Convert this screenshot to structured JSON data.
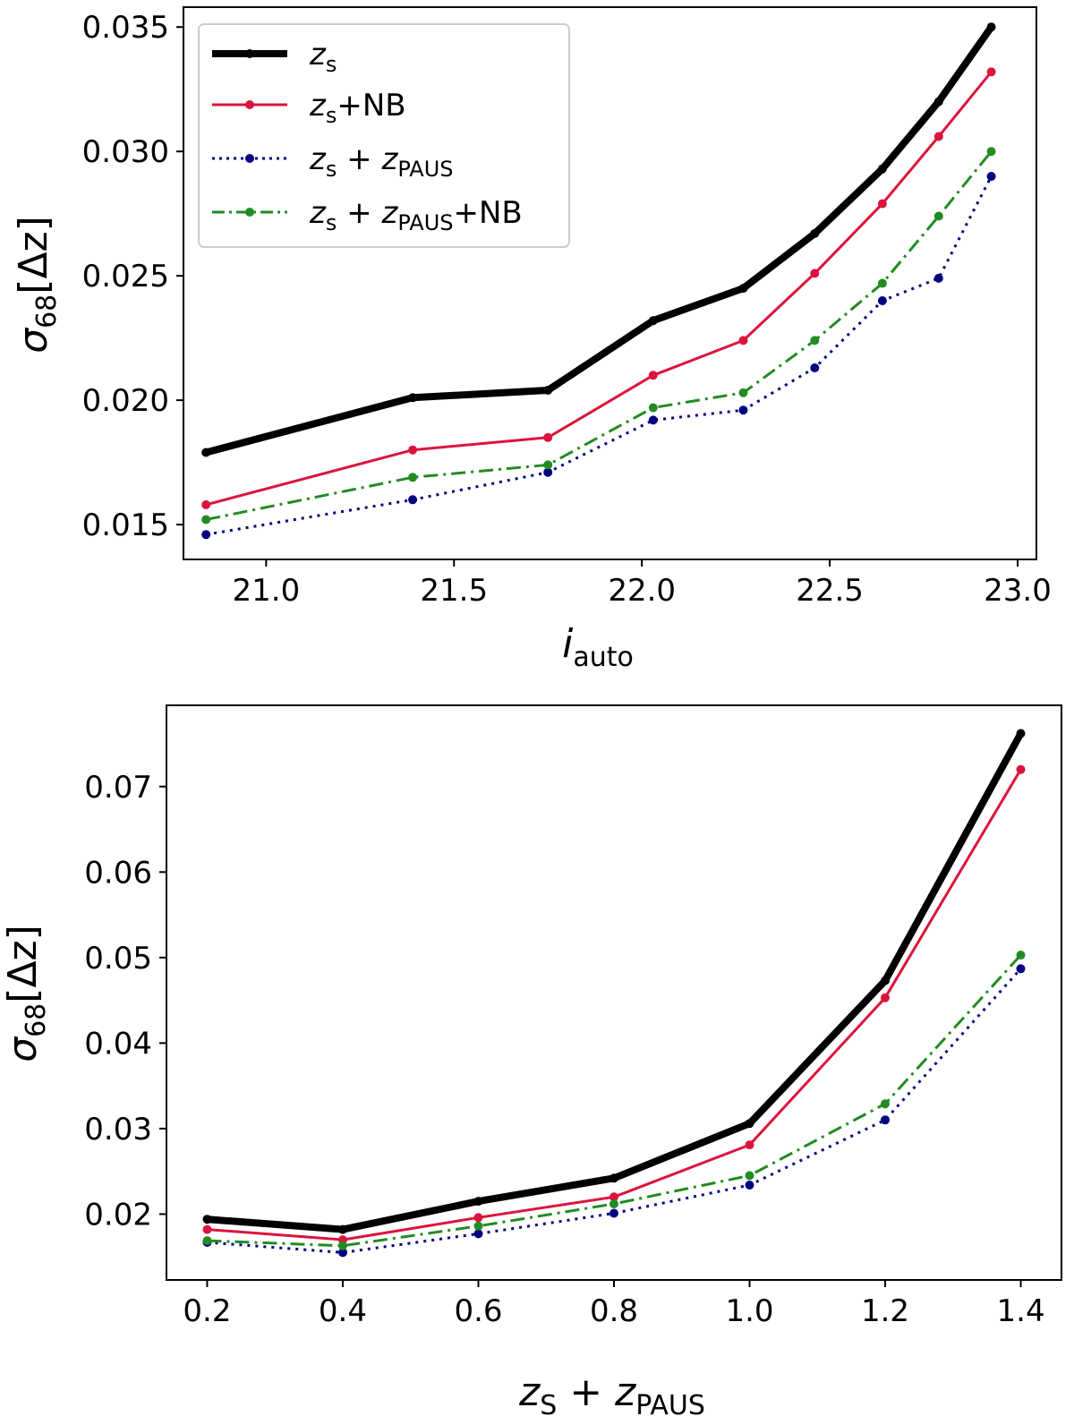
{
  "chart_data": [
    {
      "type": "line",
      "panel": "top",
      "title": "",
      "xlabel": "i_auto",
      "xlabel_main": "i",
      "xlabel_sub": "auto",
      "ylabel": "σ68[Δz]",
      "xlim": [
        20.78,
        23.05
      ],
      "ylim": [
        0.0136,
        0.0358
      ],
      "xticks": [
        21.0,
        21.5,
        22.0,
        22.5,
        23.0
      ],
      "xtick_labels": [
        "21.0",
        "21.5",
        "22.0",
        "22.5",
        "23.0"
      ],
      "yticks": [
        0.015,
        0.02,
        0.025,
        0.03,
        0.035
      ],
      "ytick_labels": [
        "0.015",
        "0.020",
        "0.025",
        "0.030",
        "0.035"
      ],
      "grid": false,
      "legend": "top-left",
      "x": [
        20.84,
        21.39,
        21.75,
        22.03,
        22.27,
        22.46,
        22.64,
        22.79,
        22.93
      ],
      "series": [
        {
          "name": "z_s",
          "color": "#000000",
          "style": "solid",
          "width": 8,
          "values": [
            0.0179,
            0.0201,
            0.0204,
            0.0232,
            0.0245,
            0.0267,
            0.0293,
            0.032,
            0.035
          ]
        },
        {
          "name": "z_s+NB",
          "color": "#dc143c",
          "style": "solid",
          "width": 3,
          "values": [
            0.0158,
            0.018,
            0.0185,
            0.021,
            0.0224,
            0.0251,
            0.0279,
            0.0306,
            0.0332
          ]
        },
        {
          "name": "z_s + z_PAUS",
          "color": "#000080",
          "style": "dotted",
          "width": 3,
          "values": [
            0.0146,
            0.016,
            0.0171,
            0.0192,
            0.0196,
            0.0213,
            0.024,
            0.0249,
            0.029
          ]
        },
        {
          "name": "z_s + z_PAUS+NB",
          "color": "#228b22",
          "style": "dashdot",
          "width": 3,
          "values": [
            0.0152,
            0.0169,
            0.0174,
            0.0197,
            0.0203,
            0.0224,
            0.0247,
            0.0274,
            0.03
          ]
        }
      ]
    },
    {
      "type": "line",
      "panel": "bottom",
      "title": "",
      "xlabel": "z_s + z_PAUS",
      "ylabel": "σ68[Δz]",
      "xlim": [
        0.14,
        1.46
      ],
      "ylim": [
        0.0123,
        0.0795
      ],
      "xticks": [
        0.2,
        0.4,
        0.6,
        0.8,
        1.0,
        1.2,
        1.4
      ],
      "xtick_labels": [
        "0.2",
        "0.4",
        "0.6",
        "0.8",
        "1.0",
        "1.2",
        "1.4"
      ],
      "yticks": [
        0.02,
        0.03,
        0.04,
        0.05,
        0.06,
        0.07
      ],
      "ytick_labels": [
        "0.02",
        "0.03",
        "0.04",
        "0.05",
        "0.06",
        "0.07"
      ],
      "grid": false,
      "x": [
        0.2,
        0.4,
        0.6,
        0.8,
        1.0,
        1.2,
        1.4
      ],
      "series": [
        {
          "name": "z_s",
          "color": "#000000",
          "style": "solid",
          "width": 8,
          "values": [
            0.0194,
            0.0182,
            0.0215,
            0.0242,
            0.0306,
            0.0473,
            0.0762
          ]
        },
        {
          "name": "z_s+NB",
          "color": "#dc143c",
          "style": "solid",
          "width": 3,
          "values": [
            0.0182,
            0.017,
            0.0196,
            0.022,
            0.0281,
            0.0453,
            0.072
          ]
        },
        {
          "name": "z_s + z_PAUS",
          "color": "#000080",
          "style": "dotted",
          "width": 3,
          "values": [
            0.0167,
            0.0155,
            0.0177,
            0.0201,
            0.0234,
            0.031,
            0.0487
          ]
        },
        {
          "name": "z_s + z_PAUS+NB",
          "color": "#228b22",
          "style": "dashdot",
          "width": 3,
          "values": [
            0.0169,
            0.0163,
            0.0186,
            0.0212,
            0.0245,
            0.0329,
            0.0503
          ]
        }
      ]
    }
  ],
  "legend": {
    "entries": [
      {
        "main": "z",
        "sub": "s",
        "tail": ""
      },
      {
        "main": "z",
        "sub": "s",
        "tail": "+NB"
      },
      {
        "main": "z",
        "sub": "s",
        "tail": " + ",
        "main2": "z",
        "sub2": "PAUS",
        "tail2": ""
      },
      {
        "main": "z",
        "sub": "s",
        "tail": " + ",
        "main2": "z",
        "sub2": "PAUS",
        "tail2": "+NB"
      }
    ]
  },
  "ylabel_parts": {
    "sigma": "σ",
    "sub": "68",
    "bracket": "[Δz]"
  },
  "bottom_xlabel_parts": {
    "a": "z",
    "a_sub": "S",
    "mid": " + ",
    "b": "z",
    "b_sub": "PAUS"
  }
}
